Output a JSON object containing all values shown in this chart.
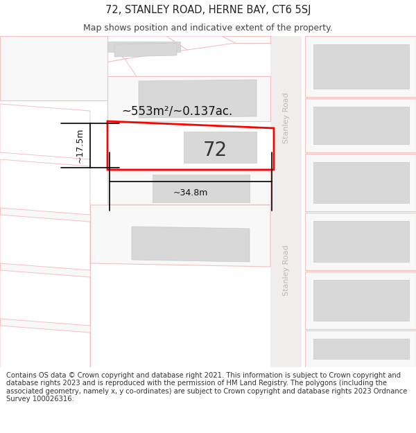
{
  "title": "72, STANLEY ROAD, HERNE BAY, CT6 5SJ",
  "subtitle": "Map shows position and indicative extent of the property.",
  "footer": "Contains OS data © Crown copyright and database right 2021. This information is subject to Crown copyright and database rights 2023 and is reproduced with the permission of HM Land Registry. The polygons (including the associated geometry, namely x, y co-ordinates) are subject to Crown copyright and database rights 2023 Ordnance Survey 100026316.",
  "bg_color": "#ffffff",
  "map_bg": "#ffffff",
  "plot_line_color": "#f5c0c0",
  "plot_edge": "#ff0000",
  "building_fill": "#d8d8d8",
  "building_edge": "#c8c8c8",
  "road_fill": "#f0eded",
  "road_label": "Stanley Road",
  "road_label_color": "#c0b8b8",
  "area_label": "~553m²/~0.137ac.",
  "width_label": "~34.8m",
  "height_label": "~17.5m",
  "number_label": "72",
  "title_fontsize": 10.5,
  "subtitle_fontsize": 9,
  "footer_fontsize": 7.2,
  "annot_fontsize": 9,
  "area_fontsize": 12,
  "num_fontsize": 20
}
